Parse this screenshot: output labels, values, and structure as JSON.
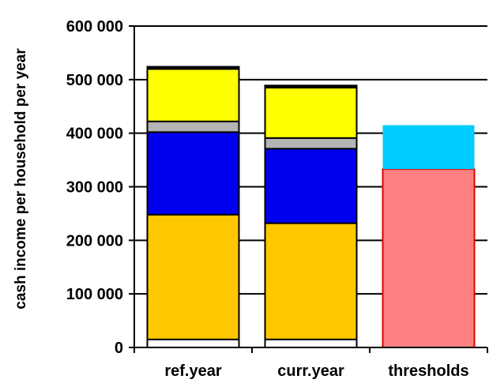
{
  "chart_data": {
    "type": "bar",
    "stacked": true,
    "title": "",
    "xlabel": "",
    "ylabel": "cash income per household per year",
    "ylim": [
      0,
      600000
    ],
    "yticks": [
      0,
      100000,
      200000,
      300000,
      400000,
      500000,
      600000
    ],
    "ytick_labels": [
      "0",
      "100 000",
      "200 000",
      "300 000",
      "400 000",
      "500 000",
      "600 000"
    ],
    "categories": [
      "ref.year",
      "curr.year",
      "thresholds"
    ],
    "gridlines": true,
    "legend": "none",
    "bars": [
      {
        "category": "ref.year",
        "segments": [
          {
            "color": "#FFFFFF",
            "value": 15000
          },
          {
            "color": "#FFC800",
            "value": 233000
          },
          {
            "color": "#0000F0",
            "value": 154000
          },
          {
            "color": "#B4B4B4",
            "value": 20000
          },
          {
            "color": "#FFFF00",
            "value": 98000
          },
          {
            "color": "#000000",
            "value": 4000
          }
        ]
      },
      {
        "category": "curr.year",
        "segments": [
          {
            "color": "#FFFFFF",
            "value": 15000
          },
          {
            "color": "#FFC800",
            "value": 217000
          },
          {
            "color": "#0000F0",
            "value": 139000
          },
          {
            "color": "#B4B4B4",
            "value": 20000
          },
          {
            "color": "#FFFF00",
            "value": 94000
          },
          {
            "color": "#000000",
            "value": 4000
          }
        ]
      },
      {
        "category": "thresholds",
        "segments": [
          {
            "color": "#FF8080",
            "value": 333000
          },
          {
            "color": "#00CCFF",
            "value": 82000
          }
        ]
      }
    ]
  }
}
